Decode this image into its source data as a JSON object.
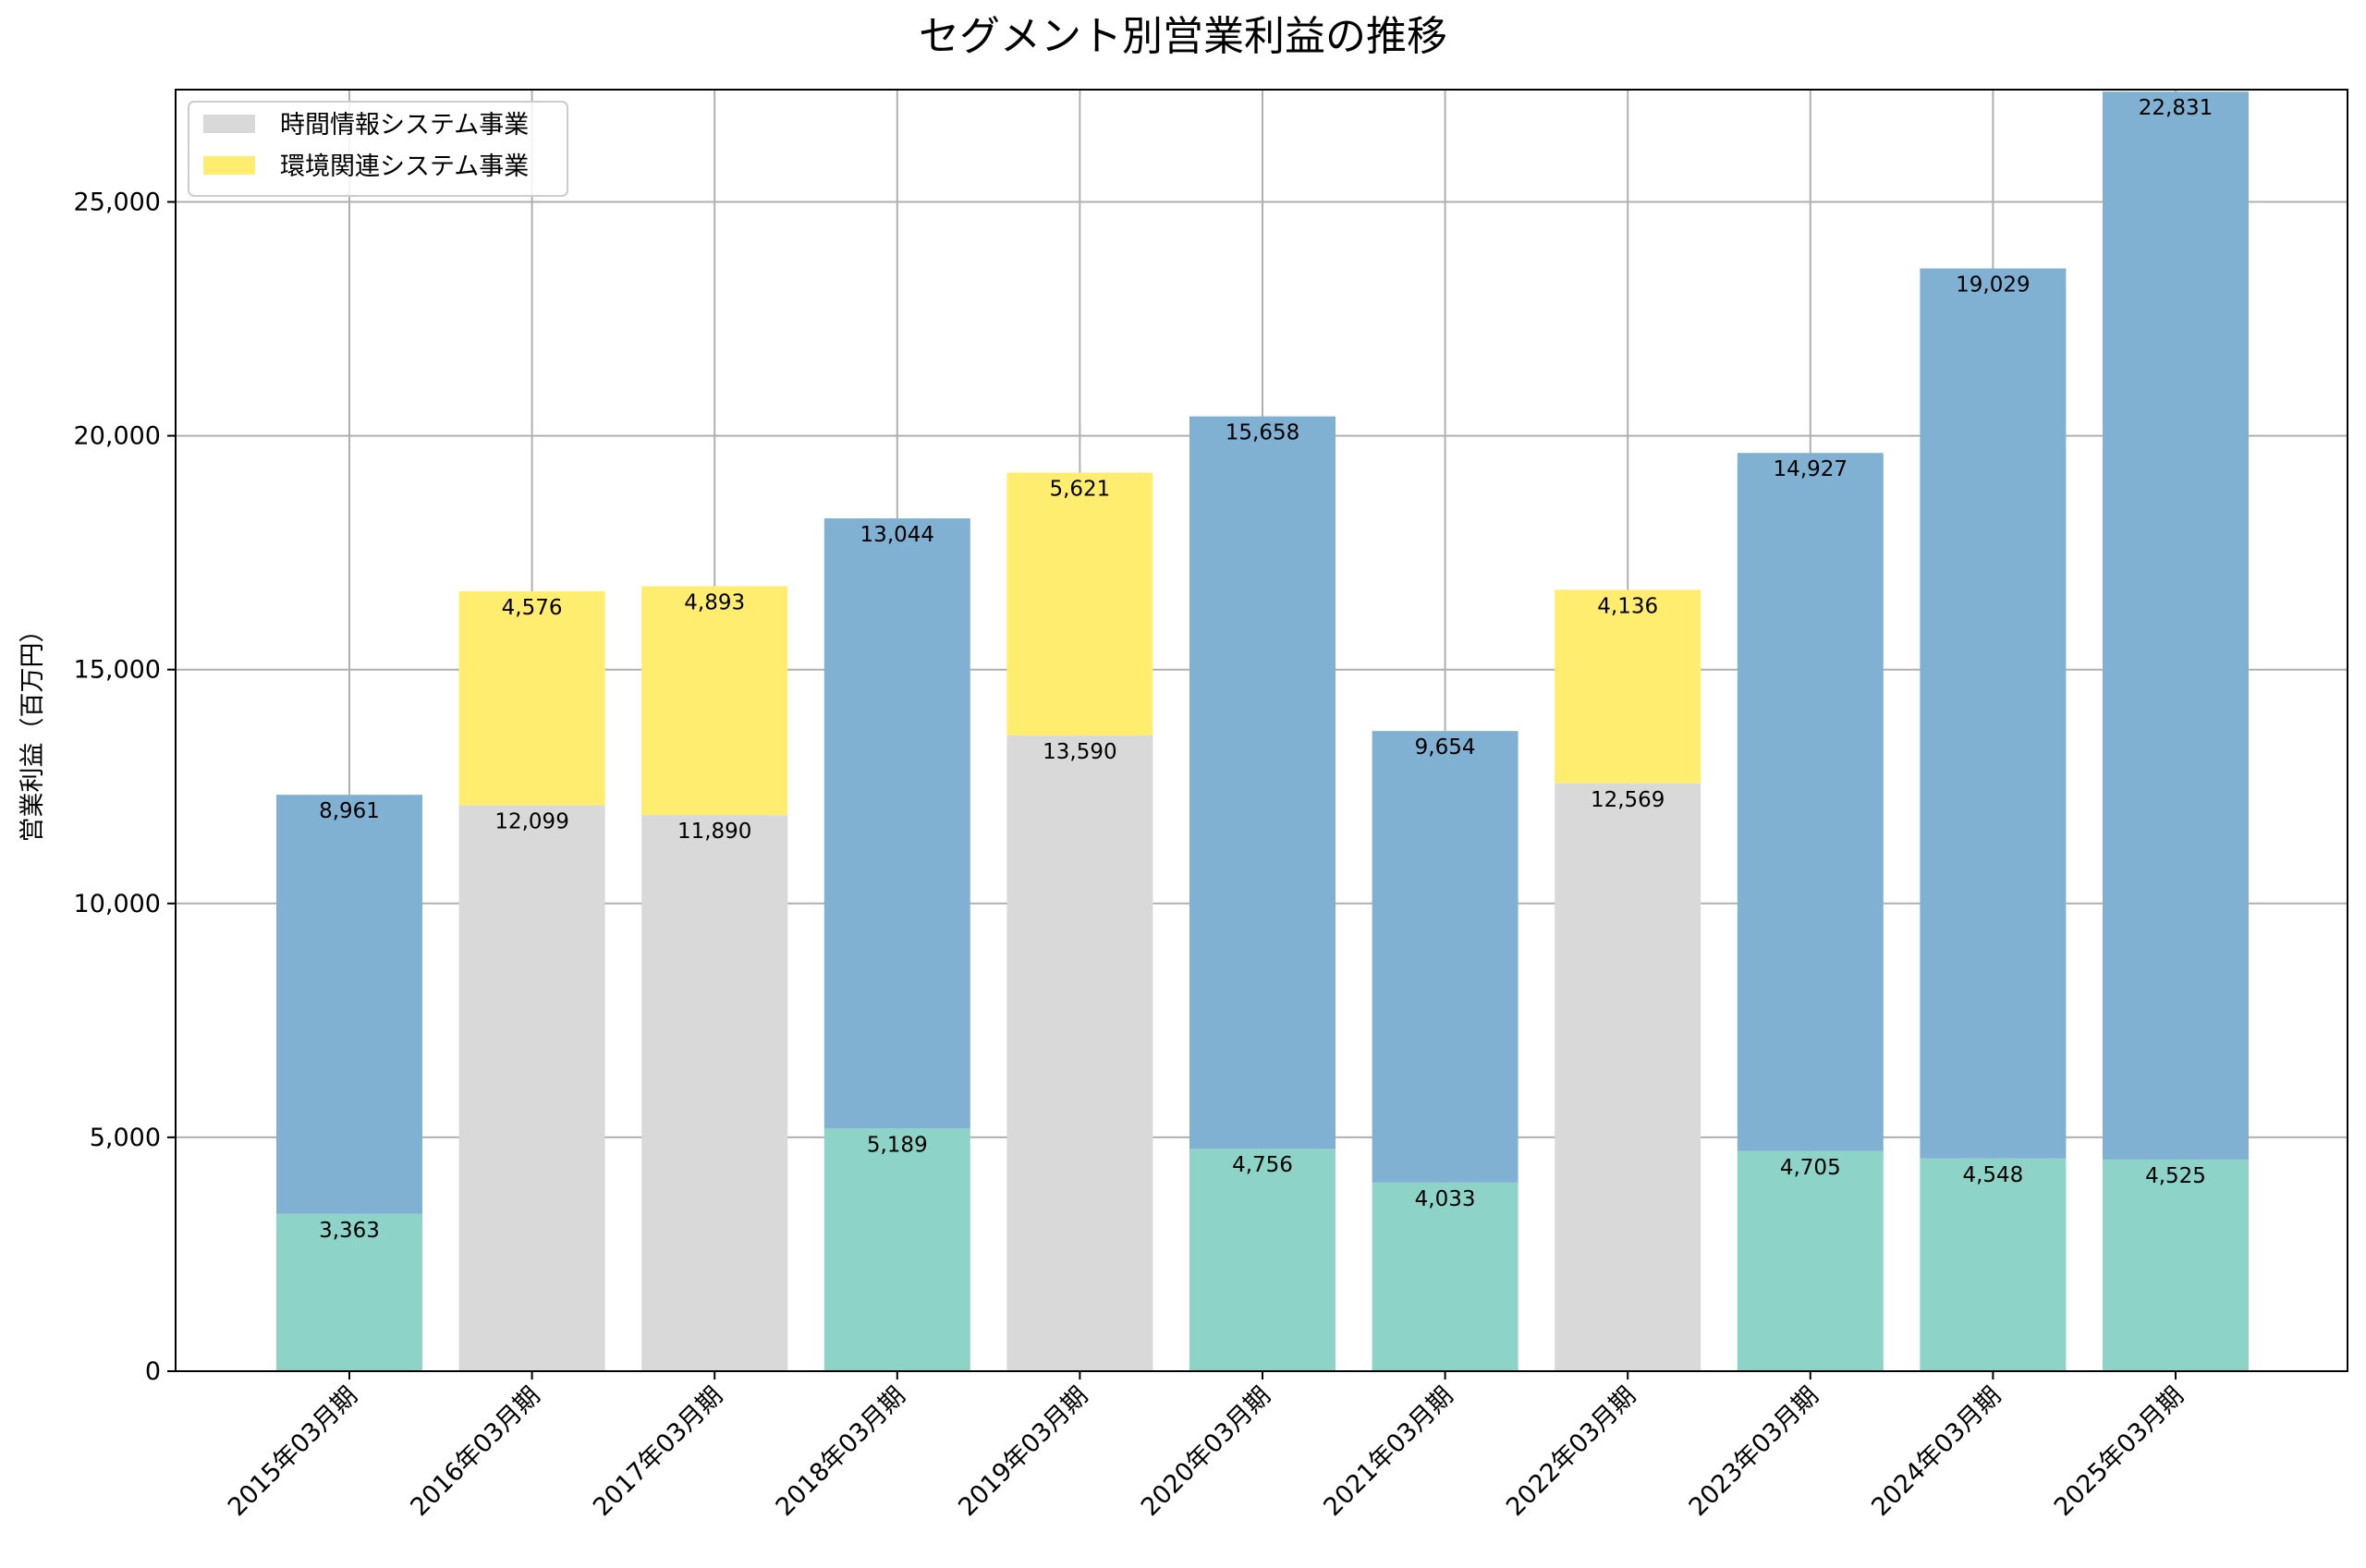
{
  "chart_data": {
    "type": "bar",
    "stacked": true,
    "title": "セグメント別営業利益の推移",
    "xlabel": "",
    "ylabel": "営業利益（百万円）",
    "ylim": [
      0,
      27400
    ],
    "yticks": [
      0,
      5000,
      10000,
      15000,
      20000,
      25000
    ],
    "ytick_labels": [
      "0",
      "5,000",
      "10,000",
      "15,000",
      "20,000",
      "25,000"
    ],
    "grid": true,
    "legend_position": "top-left",
    "categories": [
      "2015年03月期",
      "2016年03月期",
      "2017年03月期",
      "2018年03月期",
      "2019年03月期",
      "2020年03月期",
      "2021年03月期",
      "2022年03月期",
      "2023年03月期",
      "2024年03月期",
      "2025年03月期"
    ],
    "series": [
      {
        "name": "",
        "color": "#8dd3c7",
        "values": [
          3363,
          null,
          null,
          5189,
          null,
          4756,
          4033,
          null,
          4705,
          4548,
          4525
        ],
        "labels": [
          "3,363",
          "",
          "",
          "5,189",
          "",
          "4,756",
          "4,033",
          "",
          "4,705",
          "4,548",
          "4,525"
        ]
      },
      {
        "name": "時間情報システム事業",
        "color": "#d9d9d9",
        "values": [
          null,
          12099,
          11890,
          null,
          13590,
          null,
          null,
          12569,
          null,
          null,
          null
        ],
        "labels": [
          "",
          "12,099",
          "11,890",
          "",
          "13,590",
          "",
          "",
          "12,569",
          "",
          "",
          ""
        ]
      },
      {
        "name": "環境関連システム事業",
        "color": "#ffed6f",
        "values": [
          null,
          4576,
          4893,
          null,
          5621,
          null,
          null,
          4136,
          null,
          null,
          null
        ],
        "labels": [
          "",
          "4,576",
          "4,893",
          "",
          "5,621",
          "",
          "",
          "4,136",
          "",
          "",
          ""
        ]
      },
      {
        "name": "",
        "color": "#80b1d3",
        "values": [
          8961,
          null,
          null,
          13044,
          null,
          15658,
          9654,
          null,
          14927,
          19029,
          22831
        ],
        "labels": [
          "8,961",
          "",
          "",
          "13,044",
          "",
          "15,658",
          "9,654",
          "",
          "14,927",
          "19,029",
          "22,831"
        ]
      }
    ],
    "legend": [
      {
        "label": "時間情報システム事業",
        "color": "#d9d9d9"
      },
      {
        "label": "環境関連システム事業",
        "color": "#ffed6f"
      }
    ]
  }
}
